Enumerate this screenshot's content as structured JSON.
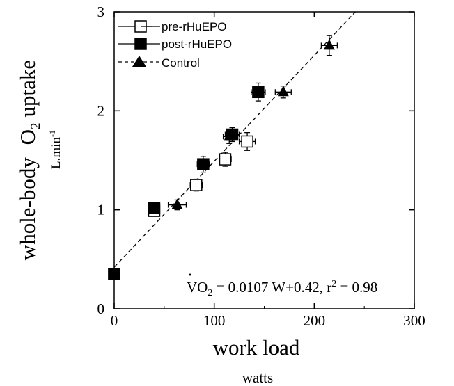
{
  "chart_data": {
    "type": "scatter",
    "xlabel": "work load",
    "xunit": "watts",
    "ylabel_main": "whole-body",
    "ylabel_o": "O",
    "ylabel_sub": "2",
    "ylabel_rest": "uptake",
    "yunit": "L.min",
    "yunit_sup": "-1",
    "xlim": [
      0,
      300
    ],
    "ylim": [
      0,
      3
    ],
    "xticks": [
      0,
      100,
      200,
      300
    ],
    "yticks": [
      0,
      1,
      2,
      3
    ],
    "grid": false,
    "legend_position": "top-left",
    "series": [
      {
        "name": "pre-rHuEPO",
        "marker": "open-square",
        "line_style": "solid",
        "points": [
          {
            "x": 0,
            "y": 0.35,
            "xerr": 0,
            "yerr": 0
          },
          {
            "x": 40,
            "y": 0.99,
            "xerr": 0,
            "yerr": 0
          },
          {
            "x": 82,
            "y": 1.25,
            "xerr": 6,
            "yerr": 0.06
          },
          {
            "x": 111,
            "y": 1.51,
            "xerr": 6,
            "yerr": 0.07
          },
          {
            "x": 133,
            "y": 1.69,
            "xerr": 8,
            "yerr": 0.09
          }
        ]
      },
      {
        "name": "post-rHuEPO",
        "marker": "filled-square",
        "line_style": "solid",
        "points": [
          {
            "x": 0,
            "y": 0.35,
            "xerr": 0,
            "yerr": 0
          },
          {
            "x": 40,
            "y": 1.02,
            "xerr": 0,
            "yerr": 0
          },
          {
            "x": 89,
            "y": 1.46,
            "xerr": 6,
            "yerr": 0.08
          },
          {
            "x": 118,
            "y": 1.76,
            "xerr": 7,
            "yerr": 0.07
          },
          {
            "x": 144,
            "y": 2.19,
            "xerr": 7,
            "yerr": 0.09
          }
        ]
      },
      {
        "name": "Control",
        "marker": "filled-triangle",
        "line_style": "dashed",
        "points": [
          {
            "x": 63,
            "y": 1.05,
            "xerr": 9,
            "yerr": 0.05
          },
          {
            "x": 115,
            "y": 1.74,
            "xerr": 6,
            "yerr": 0.07
          },
          {
            "x": 169,
            "y": 2.19,
            "xerr": 8,
            "yerr": 0.06
          },
          {
            "x": 215,
            "y": 2.66,
            "xerr": 8,
            "yerr": 0.1
          }
        ]
      }
    ],
    "fit_line": {
      "slope": 0.0107,
      "intercept": 0.42,
      "x_range": [
        0,
        300
      ]
    },
    "equation": {
      "v": "V",
      "o": "O",
      "sub": "2",
      "rhs": " = 0.0107 W+0.42, r",
      "sup": "2",
      "end": " = 0.98"
    }
  }
}
